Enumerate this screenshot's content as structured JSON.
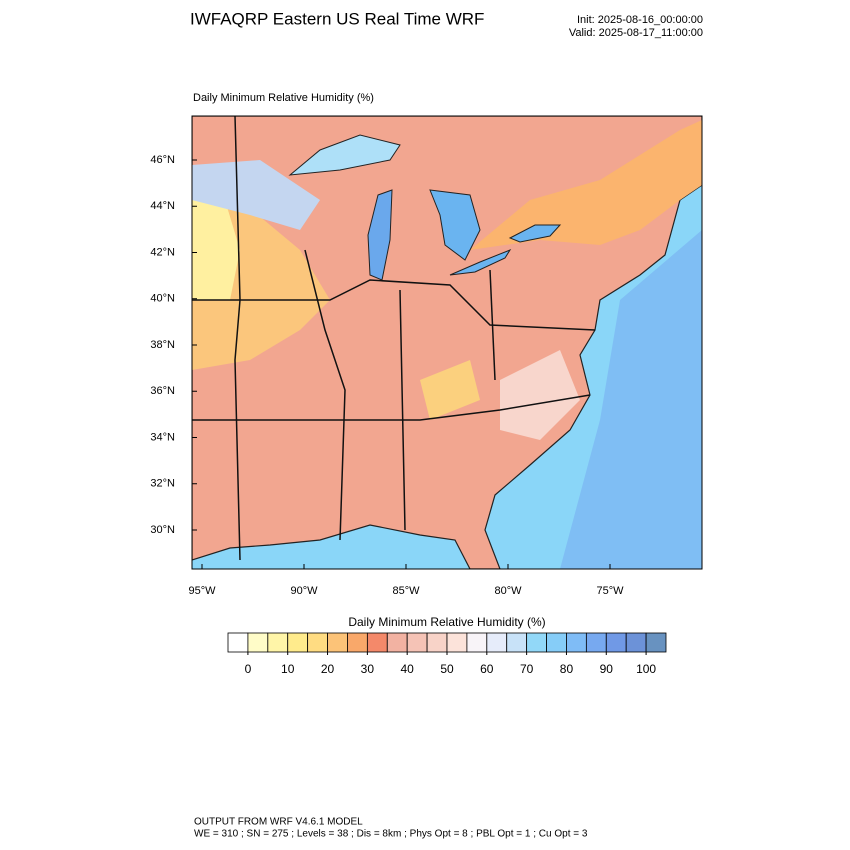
{
  "header": {
    "title": "IWFAQRP Eastern US Real Time WRF",
    "init": "Init: 2025-08-16_00:00:00",
    "valid": "Valid: 2025-08-17_11:00:00"
  },
  "map": {
    "subtitle": "Daily Minimum Relative Humidity   (%)",
    "lat_labels": [
      "46°N",
      "44°N",
      "42°N",
      "40°N",
      "38°N",
      "36°N",
      "34°N",
      "32°N",
      "30°N"
    ],
    "lon_labels": [
      "95°W",
      "90°W",
      "85°W",
      "80°W",
      "75°W"
    ]
  },
  "colorbar": {
    "title": "Daily Minimum Relative Humidity  (%)",
    "range": [
      -5,
      105
    ],
    "ticks": [
      0,
      10,
      20,
      30,
      40,
      50,
      60,
      70,
      80,
      90,
      100
    ],
    "colors": [
      "#ffffff",
      "#fffcc8",
      "#fff5a8",
      "#ffeb8c",
      "#ffdc82",
      "#fcc378",
      "#f9a86a",
      "#f4896a",
      "#f2b2a2",
      "#f5c3b6",
      "#f8d3c8",
      "#fce3da",
      "#f8f4f8",
      "#e6ecfa",
      "#c8e2f8",
      "#92d8f8",
      "#86cdf8",
      "#7fbcf6",
      "#77a9f0",
      "#7099e6",
      "#6c92d8",
      "#6892c0"
    ]
  },
  "footer": {
    "line1": "OUTPUT FROM WRF V4.6.1 MODEL",
    "line2": "WE = 310 ; SN = 275 ; Levels = 38 ; Dis = 8km ; Phys Opt = 8 ; PBL Opt = 1 ; Cu Opt = 3"
  }
}
